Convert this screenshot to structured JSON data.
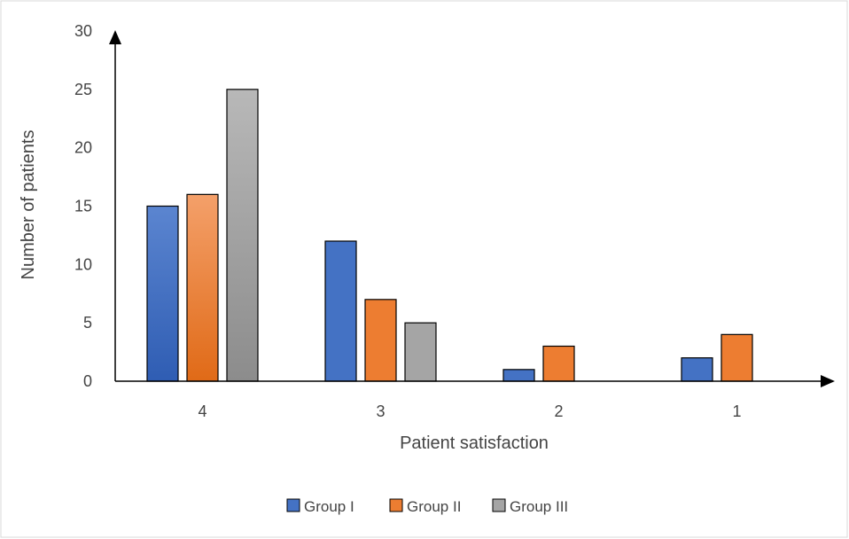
{
  "chart_data": {
    "type": "bar",
    "categories": [
      "4",
      "3",
      "2",
      "1"
    ],
    "series": [
      {
        "name": "Group I",
        "values": [
          15,
          12,
          1,
          2
        ],
        "color": "#4472C4"
      },
      {
        "name": "Group II",
        "values": [
          16,
          7,
          3,
          4
        ],
        "color": "#ED7D31"
      },
      {
        "name": "Group III",
        "values": [
          25,
          5,
          0,
          0
        ],
        "color": "#A5A5A5"
      }
    ],
    "xlabel": "Patient satisfaction",
    "ylabel": "Number of patients",
    "ylim": [
      0,
      30
    ],
    "yticks": [
      "0",
      "5",
      "10",
      "15",
      "20",
      "25",
      "30"
    ],
    "grid": false,
    "legend_position": "bottom"
  }
}
